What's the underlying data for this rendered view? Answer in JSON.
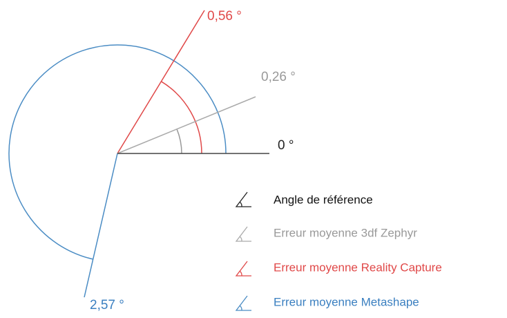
{
  "angles": [
    {
      "label": "0 °"
    },
    {
      "label": "0,26 °"
    },
    {
      "label": "0,56 °"
    },
    {
      "label": "2,57 °"
    }
  ],
  "legend": [
    {
      "label": "Angle de référence"
    },
    {
      "label": "Erreur moyenne 3df Zephyr"
    },
    {
      "label": "Erreur moyenne Reality Capture"
    },
    {
      "label": "Erreur moyenne Metashape"
    }
  ]
}
